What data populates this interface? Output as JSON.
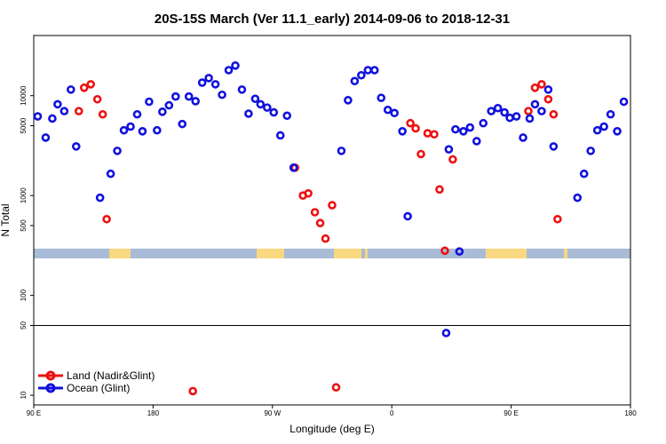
{
  "chart_data": {
    "type": "scatter",
    "title": "20S-15S March (Ver 11.1_early)   2014-09-06 to 2018-12-31",
    "xlabel": "Longitude (deg E)",
    "ylabel": "N Total",
    "x_scale": "longitude starting at 90 E, spanning 450 degrees",
    "xlim": [
      90,
      540
    ],
    "x_ticks": [
      {
        "value": 90,
        "label": "90 E"
      },
      {
        "value": 180,
        "label": "180"
      },
      {
        "value": 270,
        "label": "90 W"
      },
      {
        "value": 360,
        "label": "0"
      },
      {
        "value": 450,
        "label": "90 E"
      },
      {
        "value": 540,
        "label": "180"
      }
    ],
    "y_scale": "log",
    "ylim": [
      8,
      40000
    ],
    "y_ticks": [
      {
        "value": 10,
        "label": "10"
      },
      {
        "value": 50,
        "label": "50"
      },
      {
        "value": 100,
        "label": "100"
      },
      {
        "value": 500,
        "label": "500"
      },
      {
        "value": 1000,
        "label": "1000"
      },
      {
        "value": 5000,
        "label": "5000"
      },
      {
        "value": 10000,
        "label": "10000"
      }
    ],
    "reference_line": 50,
    "grid": false,
    "legend_position": "bottom-left",
    "legend_colors": {
      "Land (Nadir&Glint)": "#ee1111",
      "Ocean (Glint)": "#1111dd"
    },
    "surface_colors": {
      "ocean": "#a8bcd8",
      "land": "#f8d880"
    },
    "land_segments": [
      [
        123,
        147
      ],
      [
        289,
        320
      ],
      [
        376,
        407
      ],
      [
        411,
        414
      ],
      [
        547,
        593
      ],
      [
        635,
        639
      ]
    ],
    "series": [
      {
        "name": "Land (Nadir&Glint)",
        "color": "#ee1111",
        "points": [
          [
            124,
            7000
          ],
          [
            128,
            12000
          ],
          [
            133,
            13000
          ],
          [
            138,
            9200
          ],
          [
            142,
            6500
          ],
          [
            145,
            580
          ],
          [
            210,
            11
          ],
          [
            287,
            1900
          ],
          [
            293,
            1000
          ],
          [
            297,
            1050
          ],
          [
            302,
            680
          ],
          [
            306,
            530
          ],
          [
            310,
            370
          ],
          [
            315,
            800
          ],
          [
            318,
            12
          ],
          [
            374,
            5300
          ],
          [
            378,
            4700
          ],
          [
            382,
            2600
          ],
          [
            387,
            4200
          ],
          [
            392,
            4100
          ],
          [
            396,
            1150
          ],
          [
            400,
            280
          ],
          [
            406,
            2300
          ],
          [
            463,
            7000
          ],
          [
            468,
            12000
          ],
          [
            473,
            13000
          ],
          [
            478,
            9200
          ],
          [
            482,
            6500
          ],
          [
            485,
            580
          ]
        ]
      },
      {
        "name": "Ocean (Glint)",
        "color": "#1111dd",
        "points": [
          [
            93,
            6200
          ],
          [
            99,
            3800
          ],
          [
            104,
            5900
          ],
          [
            108,
            8200
          ],
          [
            113,
            7000
          ],
          [
            118,
            11500
          ],
          [
            122,
            3100
          ],
          [
            140,
            950
          ],
          [
            148,
            1650
          ],
          [
            153,
            2800
          ],
          [
            158,
            4500
          ],
          [
            163,
            4900
          ],
          [
            168,
            6500
          ],
          [
            172,
            4400
          ],
          [
            177,
            8700
          ],
          [
            183,
            4500
          ],
          [
            187,
            6900
          ],
          [
            192,
            8000
          ],
          [
            197,
            9800
          ],
          [
            202,
            5200
          ],
          [
            207,
            9800
          ],
          [
            212,
            8800
          ],
          [
            217,
            13500
          ],
          [
            222,
            15000
          ],
          [
            227,
            13000
          ],
          [
            232,
            10200
          ],
          [
            237,
            18000
          ],
          [
            242,
            20000
          ],
          [
            247,
            11500
          ],
          [
            252,
            6600
          ],
          [
            257,
            9300
          ],
          [
            261,
            8200
          ],
          [
            266,
            7600
          ],
          [
            271,
            6800
          ],
          [
            276,
            4000
          ],
          [
            281,
            6300
          ],
          [
            286,
            1900
          ],
          [
            322,
            2800
          ],
          [
            327,
            9000
          ],
          [
            332,
            14000
          ],
          [
            337,
            16000
          ],
          [
            342,
            18000
          ],
          [
            347,
            18000
          ],
          [
            352,
            9500
          ],
          [
            357,
            7200
          ],
          [
            362,
            6700
          ],
          [
            368,
            4400
          ],
          [
            372,
            620
          ],
          [
            401,
            42
          ],
          [
            403,
            2900
          ],
          [
            408,
            4600
          ],
          [
            411,
            275
          ],
          [
            414,
            4400
          ],
          [
            419,
            4800
          ],
          [
            424,
            3500
          ],
          [
            429,
            5300
          ],
          [
            435,
            7000
          ],
          [
            440,
            7500
          ],
          [
            445,
            6800
          ],
          [
            449,
            6000
          ],
          [
            454,
            6200
          ],
          [
            459,
            3800
          ],
          [
            464,
            5900
          ],
          [
            468,
            8200
          ],
          [
            473,
            7000
          ],
          [
            478,
            11500
          ],
          [
            482,
            3100
          ],
          [
            500,
            950
          ],
          [
            505,
            1650
          ],
          [
            510,
            2800
          ],
          [
            515,
            4500
          ],
          [
            520,
            4900
          ],
          [
            525,
            6500
          ],
          [
            530,
            4400
          ],
          [
            535,
            8700
          ]
        ]
      }
    ]
  }
}
